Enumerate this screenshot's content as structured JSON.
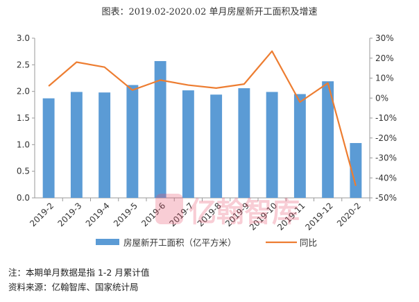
{
  "chart_data": {
    "type": "bar",
    "title": "图表：2019.02-2020.02 单月房屋新开工面积及增速",
    "categories": [
      "2019-2",
      "2019-3",
      "2019-4",
      "2019-5",
      "2019-6",
      "2019-7",
      "2019-8",
      "2019-9",
      "2019-10",
      "2019-11",
      "2019-12",
      "2020-2"
    ],
    "series": [
      {
        "name": "房屋新开工面积（亿平方米）",
        "type": "bar",
        "axis": "left",
        "color": "#5b9bd5",
        "values": [
          1.87,
          1.99,
          1.98,
          2.12,
          2.57,
          2.02,
          1.94,
          2.06,
          1.99,
          1.95,
          2.19,
          1.03
        ]
      },
      {
        "name": "同比",
        "type": "line",
        "axis": "right",
        "color": "#ed7d31",
        "values": [
          6,
          18,
          15.5,
          4,
          9,
          6.5,
          5,
          7,
          23.5,
          -2,
          7.5,
          -44
        ]
      }
    ],
    "y_left": {
      "min": 0,
      "max": 3.0,
      "step": 0.5,
      "ticks": [
        "0.0",
        "0.5",
        "1.0",
        "1.5",
        "2.0",
        "2.5",
        "3.0"
      ]
    },
    "y_right": {
      "min": -50,
      "max": 30,
      "step": 10,
      "ticks": [
        "-50%",
        "-40%",
        "-30%",
        "-20%",
        "-10%",
        "0%",
        "10%",
        "20%",
        "30%"
      ]
    },
    "grid": false,
    "legend": "bottom"
  },
  "notes": {
    "note1": "注：本期单月数据是指 1-2 月累计值",
    "note2": "资料来源：亿翰智库、国家统计局"
  },
  "watermark": {
    "text": "亿翰智库",
    "color": "#e8506b"
  }
}
